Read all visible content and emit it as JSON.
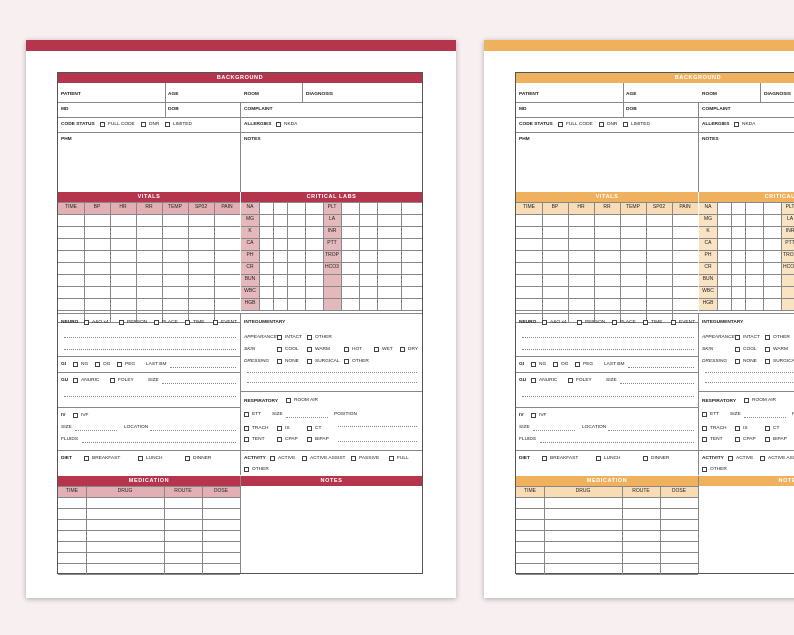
{
  "template": {
    "sections": {
      "background": "BACKGROUND",
      "vitals": "VITALS",
      "critical_labs": "CRITICAL LABS",
      "medication": "MEDICATION",
      "notes": "NOTES"
    },
    "background_fields": {
      "patient": "PATIENT",
      "age": "AGE",
      "room": "ROOM",
      "diagnosis": "DIAGNOSIS",
      "md": "MD",
      "dob": "DOB",
      "complaint": "COMPLAINT",
      "code_status": "CODE STATUS",
      "full_code": "FULL CODE",
      "dnr": "DNR",
      "limited": "LIMITED",
      "allergies": "ALLERGIES",
      "nkda": "NKDA",
      "phm": "PHM",
      "notes": "NOTES"
    },
    "vitals_headers": [
      "TIME",
      "BP",
      "HR",
      "RR",
      "TEMP",
      "SP02",
      "PAIN"
    ],
    "labs_left": [
      "NA",
      "MG",
      "K",
      "CA",
      "PH",
      "CR",
      "BUN",
      "WBC",
      "HGB"
    ],
    "labs_right": [
      "PLT",
      "LA",
      "INR",
      "PTT",
      "TROP",
      "HCO3"
    ],
    "neuro": {
      "label": "NEURO",
      "options": [
        "A&O x4",
        "PERSON",
        "PLACE",
        "TIME",
        "EVENT"
      ]
    },
    "gi": {
      "label": "GI",
      "options": [
        "NG",
        "OG",
        "PEG"
      ],
      "last_bm": "LAST BM"
    },
    "gu": {
      "label": "GU",
      "options": [
        "ANURIC",
        "FOLEY"
      ],
      "size": "SIZE"
    },
    "iv": {
      "label": "IV",
      "ivf": "IVF",
      "size": "SIZE",
      "location": "LOCATION",
      "fluids": "FLUIDS"
    },
    "diet": {
      "label": "DIET",
      "options": [
        "BREAKFAST",
        "LUNCH",
        "DINNER"
      ]
    },
    "integumentary": {
      "label": "INTEGUMENTARY",
      "appearance": "APPEARANCE",
      "appearance_options": [
        "INTACT",
        "OTHER"
      ],
      "skin": "SKIN",
      "skin_options": [
        "COOL",
        "WARM",
        "HOT",
        "WET",
        "DRY"
      ],
      "dressing": "DRESSING",
      "dressing_options": [
        "NONE",
        "SURGICAL",
        "OTHER"
      ]
    },
    "respiratory": {
      "label": "RESPIRATORY",
      "room_air": "ROOM AIR",
      "ett": "ETT",
      "size": "SIZE",
      "position": "POSITION",
      "trach": "TRACH",
      "is": "IS",
      "ct": "CT",
      "tent": "TENT",
      "cpap": "CPAP",
      "bipap": "BIPAP"
    },
    "activity": {
      "label": "ACTIVITY",
      "options": [
        "ACTIVE",
        "ACTIVE ASSIST",
        "PASSIVE",
        "FULL"
      ],
      "other": "OTHER"
    },
    "medication_headers": [
      "TIME",
      "DRUG",
      "ROUTE",
      "DOSE"
    ]
  },
  "themes": [
    {
      "name": "red",
      "accent": "#b5364c",
      "header_fill": "#e2b0b4",
      "lab_fill": "#e5b8bb"
    },
    {
      "name": "orange",
      "accent": "#efb15e",
      "header_fill": "#f8dcb5",
      "lab_fill": "#fae3c3"
    }
  ]
}
